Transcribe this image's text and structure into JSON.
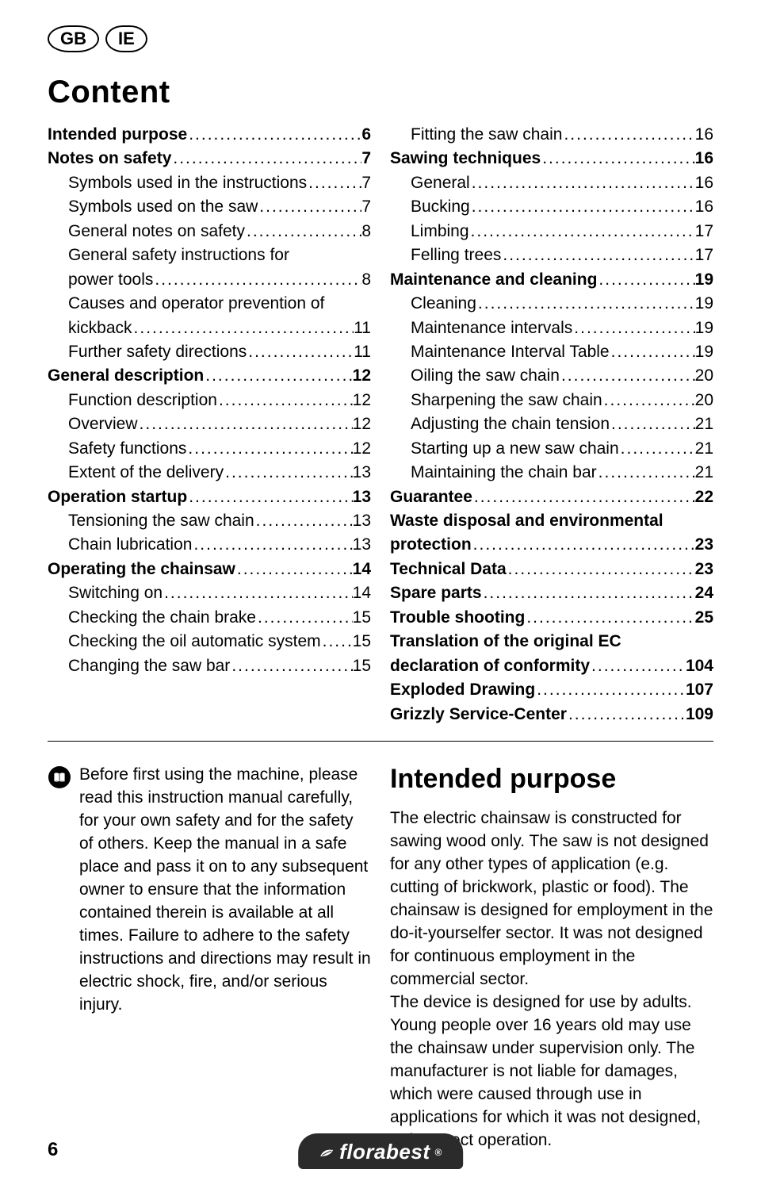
{
  "badges": [
    "GB",
    "IE"
  ],
  "contentHeading": "Content",
  "toc": {
    "left": [
      {
        "label": "Intended purpose",
        "page": "6",
        "bold": true,
        "indent": 0
      },
      {
        "label": "Notes on safety",
        "page": "7",
        "bold": true,
        "indent": 0
      },
      {
        "label": "Symbols used in the instructions",
        "page": "7",
        "bold": false,
        "indent": 1
      },
      {
        "label": "Symbols used on the saw",
        "page": "7",
        "bold": false,
        "indent": 1
      },
      {
        "label": "General notes on safety",
        "page": "8",
        "bold": false,
        "indent": 1
      },
      {
        "label": "General safety instructions for",
        "page": "",
        "bold": false,
        "indent": 1,
        "noDots": true
      },
      {
        "label": "power tools",
        "page": "8",
        "bold": false,
        "indent": 1
      },
      {
        "label": "Causes and operator prevention  of",
        "page": "",
        "bold": false,
        "indent": 1,
        "noDots": true
      },
      {
        "label": "kickback",
        "page": "11",
        "bold": false,
        "indent": 1
      },
      {
        "label": "Further safety directions",
        "page": "11",
        "bold": false,
        "indent": 1
      },
      {
        "label": "General description",
        "page": "12",
        "bold": true,
        "indent": 0
      },
      {
        "label": "Function description",
        "page": "12",
        "bold": false,
        "indent": 1
      },
      {
        "label": "Overview",
        "page": "12",
        "bold": false,
        "indent": 1
      },
      {
        "label": "Safety functions",
        "page": "12",
        "bold": false,
        "indent": 1
      },
      {
        "label": "Extent of the delivery",
        "page": "13",
        "bold": false,
        "indent": 1
      },
      {
        "label": "Operation startup",
        "page": "13",
        "bold": true,
        "indent": 0
      },
      {
        "label": "Tensioning the saw chain",
        "page": "13",
        "bold": false,
        "indent": 1
      },
      {
        "label": "Chain lubrication",
        "page": "13",
        "bold": false,
        "indent": 1
      },
      {
        "label": "Operating the chainsaw",
        "page": "14",
        "bold": true,
        "indent": 0
      },
      {
        "label": "Switching on",
        "page": "14",
        "bold": false,
        "indent": 1
      },
      {
        "label": "Checking the chain brake",
        "page": "15",
        "bold": false,
        "indent": 1
      },
      {
        "label": "Checking the oil automatic system",
        "page": "15",
        "bold": false,
        "indent": 1
      },
      {
        "label": "Changing the saw bar",
        "page": "15",
        "bold": false,
        "indent": 1
      }
    ],
    "right": [
      {
        "label": "Fitting the saw chain",
        "page": "16",
        "bold": false,
        "indent": 1
      },
      {
        "label": "Sawing techniques",
        "page": "16",
        "bold": true,
        "indent": 0
      },
      {
        "label": "General",
        "page": "16",
        "bold": false,
        "indent": 1
      },
      {
        "label": "Bucking",
        "page": "16",
        "bold": false,
        "indent": 1
      },
      {
        "label": "Limbing",
        "page": "17",
        "bold": false,
        "indent": 1
      },
      {
        "label": "Felling trees",
        "page": "17",
        "bold": false,
        "indent": 1
      },
      {
        "label": "Maintenance and cleaning",
        "page": "19",
        "bold": true,
        "indent": 0
      },
      {
        "label": "Cleaning",
        "page": "19",
        "bold": false,
        "indent": 1
      },
      {
        "label": "Maintenance intervals",
        "page": "19",
        "bold": false,
        "indent": 1
      },
      {
        "label": "Maintenance Interval Table",
        "page": "19",
        "bold": false,
        "indent": 1
      },
      {
        "label": "Oiling the saw chain",
        "page": "20",
        "bold": false,
        "indent": 1
      },
      {
        "label": "Sharpening the saw chain",
        "page": "20",
        "bold": false,
        "indent": 1
      },
      {
        "label": "Adjusting the chain tension",
        "page": "21",
        "bold": false,
        "indent": 1
      },
      {
        "label": "Starting up a new saw chain",
        "page": "21",
        "bold": false,
        "indent": 1
      },
      {
        "label": "Maintaining the chain bar",
        "page": "21",
        "bold": false,
        "indent": 1
      },
      {
        "label": "Guarantee",
        "page": "22",
        "bold": true,
        "indent": 0
      },
      {
        "label": "Waste disposal and environmental",
        "page": "",
        "bold": true,
        "indent": 0,
        "noDots": true
      },
      {
        "label": "protection",
        "page": "23",
        "bold": true,
        "indent": 0
      },
      {
        "label": "Technical Data",
        "page": "23",
        "bold": true,
        "indent": 0
      },
      {
        "label": "Spare parts",
        "page": "24",
        "bold": true,
        "indent": 0
      },
      {
        "label": "Trouble shooting",
        "page": "25",
        "bold": true,
        "indent": 0
      },
      {
        "label": "Translation of the original EC",
        "page": "",
        "bold": true,
        "indent": 0,
        "noDots": true
      },
      {
        "label": "declaration of conformity",
        "page": "104",
        "bold": true,
        "indent": 0
      },
      {
        "label": "Exploded Drawing",
        "page": "107",
        "bold": true,
        "indent": 0
      },
      {
        "label": "Grizzly Service-Center",
        "page": "109",
        "bold": true,
        "indent": 0
      }
    ]
  },
  "noteText": "Before first using the machine, please read this instruction manual carefully, for your own safety and for the safety of others. Keep the manual in a safe place and pass it on to any subsequent owner to ensure that the information contained therein is available at all times. Failure to adhere to the safety instructions and directions may result in electric shock, fire, and/or serious injury.",
  "intendedHeading": "Intended purpose",
  "intendedBody": "The electric chainsaw is constructed for sawing wood only. The saw is not designed for any other types of application (e.g. cutting of brickwork, plastic or food). The chainsaw is designed for employment in the do-it-yourselfer sector. It was not designed for continuous employment in the commercial sector.\nThe device is designed for use by adults. Young people over 16 years old may use the chainsaw under supervision only. The manufacturer is not liable for damages, which were caused through use in applications for which it was not designed, or incorrect operation.",
  "pageNumber": "6",
  "brand": "florabest",
  "brandSuffix": "®",
  "colors": {
    "text": "#000000",
    "background": "#ffffff",
    "logoBg": "#2b2b2b",
    "logoText": "#ffffff"
  },
  "typography": {
    "bodyFontSize": 21,
    "headingFontSize": 40,
    "sectionHeadingFontSize": 34,
    "fontFamily": "Arial"
  }
}
